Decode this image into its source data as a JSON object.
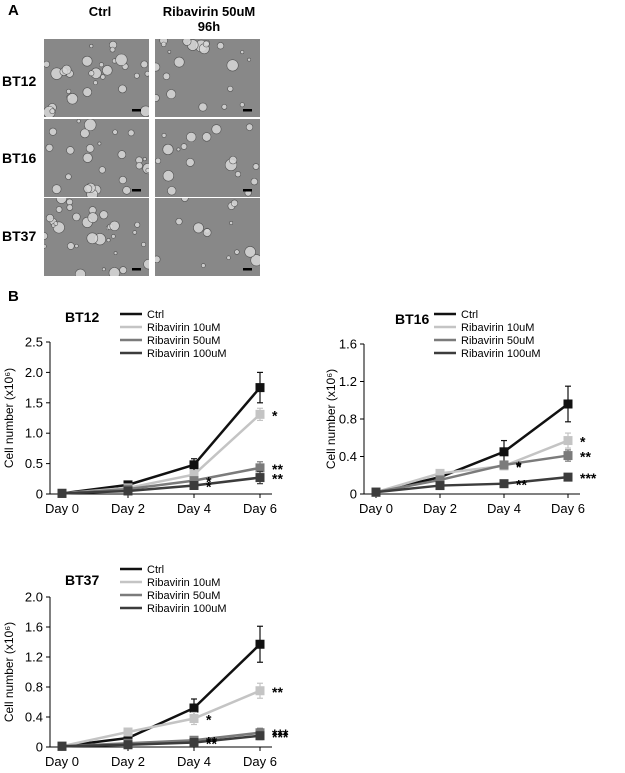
{
  "panel_a": {
    "letter": "A",
    "columns": [
      "Ctrl",
      "Ribavirin 50uM",
      "96h"
    ],
    "rows": [
      "BT12",
      "BT16",
      "BT37"
    ]
  },
  "panel_b": {
    "letter": "B"
  },
  "colors": {
    "ctrl": "#111111",
    "rib10": "#c4c4c4",
    "rib50": "#7b7b7b",
    "rib100": "#3c3c3c",
    "micro_bg": "#888888"
  },
  "chart_data": [
    {
      "type": "line",
      "title": "BT12",
      "ylabel": "Cell number (x10⁶)",
      "xlabel": "",
      "categories": [
        "Day 0",
        "Day 2",
        "Day 4",
        "Day 6"
      ],
      "ylim": [
        0,
        2.5
      ],
      "yticks": [
        "0",
        "0.5",
        "1.0",
        "1.5",
        "2.0",
        "2.5"
      ],
      "legend": "top-left",
      "series": [
        {
          "name": "Ctrl",
          "color_key": "ctrl",
          "values": [
            0.01,
            0.15,
            0.48,
            1.75
          ],
          "errors": [
            0,
            0.02,
            0.1,
            0.25
          ]
        },
        {
          "name": "Ribavirin 10uM",
          "color_key": "rib10",
          "values": [
            0.01,
            0.1,
            0.32,
            1.31
          ],
          "errors": [
            0,
            0.02,
            0.05,
            0.1
          ]
        },
        {
          "name": "Ribavirin 50uM",
          "color_key": "rib50",
          "values": [
            0.01,
            0.08,
            0.22,
            0.43
          ],
          "errors": [
            0,
            0.02,
            0.05,
            0.1
          ]
        },
        {
          "name": "Ribavirin 100uM",
          "color_key": "rib100",
          "values": [
            0.01,
            0.05,
            0.14,
            0.27
          ],
          "errors": [
            0,
            0.02,
            0.04,
            0.1
          ]
        }
      ],
      "annotations": [
        {
          "text": "*",
          "series": 1,
          "point": 3
        },
        {
          "text": "**",
          "series": 2,
          "point": 3
        },
        {
          "text": "**",
          "series": 3,
          "point": 3
        },
        {
          "text": "*",
          "series": 2,
          "point": 2
        },
        {
          "text": "*",
          "series": 3,
          "point": 2
        }
      ]
    },
    {
      "type": "line",
      "title": "BT16",
      "ylabel": "Cell number (x10⁶)",
      "xlabel": "",
      "categories": [
        "Day 0",
        "Day 2",
        "Day 4",
        "Day 6"
      ],
      "ylim": [
        0,
        1.6
      ],
      "yticks": [
        "0",
        "0.4",
        "0.8",
        "1.2",
        "1.6"
      ],
      "legend": "top-left",
      "series": [
        {
          "name": "Ctrl",
          "color_key": "ctrl",
          "values": [
            0.02,
            0.18,
            0.45,
            0.96
          ],
          "errors": [
            0,
            0.02,
            0.12,
            0.19
          ]
        },
        {
          "name": "Ribavirin 10uM",
          "color_key": "rib10",
          "values": [
            0.02,
            0.22,
            0.3,
            0.57
          ],
          "errors": [
            0,
            0.02,
            0.04,
            0.08
          ]
        },
        {
          "name": "Ribavirin 50uM",
          "color_key": "rib50",
          "values": [
            0.02,
            0.15,
            0.31,
            0.41
          ],
          "errors": [
            0,
            0.02,
            0.04,
            0.06
          ]
        },
        {
          "name": "Ribavirin 100uM",
          "color_key": "rib100",
          "values": [
            0.02,
            0.09,
            0.11,
            0.18
          ],
          "errors": [
            0,
            0.02,
            0.03,
            0.03
          ]
        }
      ],
      "annotations": [
        {
          "text": "*",
          "series": 1,
          "point": 3
        },
        {
          "text": "**",
          "series": 2,
          "point": 3
        },
        {
          "text": "***",
          "series": 3,
          "point": 3
        },
        {
          "text": "*",
          "series": 1,
          "point": 2
        },
        {
          "text": "*",
          "series": 2,
          "point": 2
        },
        {
          "text": "**",
          "series": 3,
          "point": 2
        }
      ]
    },
    {
      "type": "line",
      "title": "BT37",
      "ylabel": "Cell number (x10⁶)",
      "xlabel": "",
      "categories": [
        "Day 0",
        "Day 2",
        "Day 4",
        "Day 6"
      ],
      "ylim": [
        0,
        2.0
      ],
      "yticks": [
        "0",
        "0.4",
        "0.8",
        "1.2",
        "1.6",
        "2.0"
      ],
      "legend": "top-left",
      "series": [
        {
          "name": "Ctrl",
          "color_key": "ctrl",
          "values": [
            0.01,
            0.12,
            0.52,
            1.37
          ],
          "errors": [
            0,
            0.02,
            0.12,
            0.24
          ]
        },
        {
          "name": "Ribavirin 10uM",
          "color_key": "rib10",
          "values": [
            0.01,
            0.2,
            0.38,
            0.75
          ],
          "errors": [
            0,
            0.02,
            0.08,
            0.1
          ]
        },
        {
          "name": "Ribavirin 50uM",
          "color_key": "rib50",
          "values": [
            0.01,
            0.05,
            0.09,
            0.19
          ],
          "errors": [
            0,
            0.01,
            0.02,
            0.06
          ]
        },
        {
          "name": "Ribavirin 100uM",
          "color_key": "rib100",
          "values": [
            0.01,
            0.03,
            0.06,
            0.15
          ],
          "errors": [
            0,
            0.01,
            0.02,
            0.05
          ]
        }
      ],
      "annotations": [
        {
          "text": "**",
          "series": 1,
          "point": 3
        },
        {
          "text": "***",
          "series": 2,
          "point": 3
        },
        {
          "text": "***",
          "series": 3,
          "point": 3
        },
        {
          "text": "*",
          "series": 1,
          "point": 2
        },
        {
          "text": "**",
          "series": 2,
          "point": 2
        },
        {
          "text": "**",
          "series": 3,
          "point": 2
        }
      ]
    }
  ]
}
